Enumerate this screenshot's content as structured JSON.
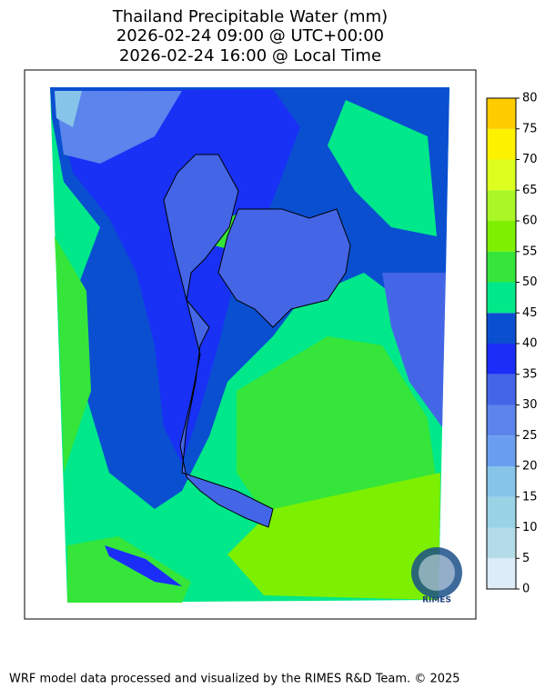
{
  "title": [
    "Thailand Precipitable Water (mm)",
    "2026-02-24 09:00 @ UTC+00:00",
    "2026-02-24 16:00 @ Local Time"
  ],
  "colorbar": {
    "ticks": [
      0,
      5,
      10,
      15,
      20,
      25,
      30,
      35,
      40,
      45,
      50,
      55,
      60,
      65,
      70,
      75,
      80
    ],
    "colors": [
      "#dcecf8",
      "#b4dce8",
      "#9ad2e6",
      "#86c5e9",
      "#6a9ef0",
      "#5b84ec",
      "#4466e6",
      "#1a2ef8",
      "#0a4fd0",
      "#00e88a",
      "#36e53a",
      "#7cf000",
      "#aaf626",
      "#ddff20",
      "#fff200",
      "#ffcc00"
    ]
  },
  "logo": "RIMES",
  "footer": "WRF model data processed and visualized by the RIMES R&D Team. © 2025"
}
